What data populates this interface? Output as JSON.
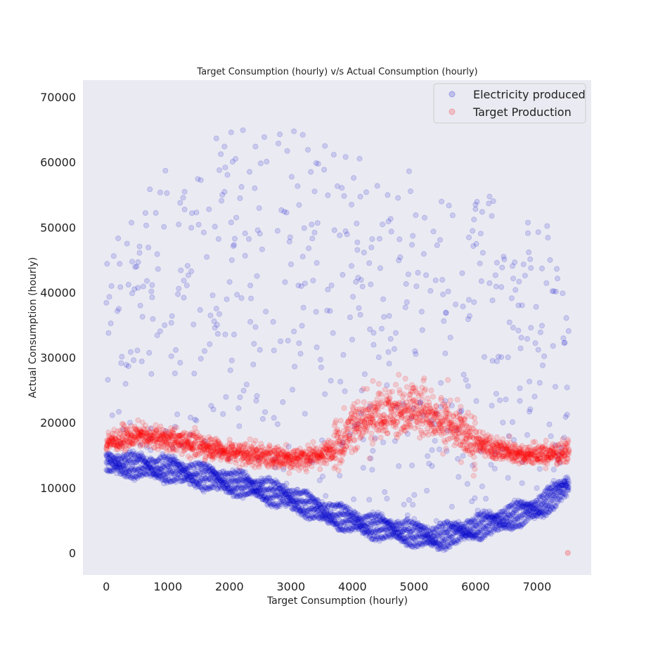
{
  "chart_data": {
    "type": "scatter",
    "title": "Target Consumption (hourly) v/s Actual Consumption (hourly)",
    "xlabel": "Target Consumption (hourly)",
    "ylabel": "Actual Consumption (hourly)",
    "xlim": [
      -380,
      7880
    ],
    "ylim": [
      -3400,
      72600
    ],
    "xticks": [
      "0",
      "1000",
      "2000",
      "3000",
      "4000",
      "5000",
      "6000",
      "7000"
    ],
    "yticks": [
      "0",
      "10000",
      "20000",
      "30000",
      "40000",
      "50000",
      "60000",
      "70000"
    ],
    "grid": false,
    "legend_position": "top-right",
    "series": [
      {
        "name": "Electricity produced",
        "color": "#0000cc",
        "marker": "circle",
        "alpha": 0.14,
        "baseline_profile": [
          [
            0,
            12500
          ],
          [
            500,
            12000
          ],
          [
            1000,
            11500
          ],
          [
            1500,
            10500
          ],
          [
            2000,
            9500
          ],
          [
            2500,
            8500
          ],
          [
            3000,
            7000
          ],
          [
            3500,
            5000
          ],
          [
            4000,
            3500
          ],
          [
            4500,
            2500
          ],
          [
            5000,
            1500
          ],
          [
            5300,
            1000
          ],
          [
            5600,
            1500
          ],
          [
            6000,
            2500
          ],
          [
            6500,
            4000
          ],
          [
            7000,
            5500
          ],
          [
            7500,
            9000
          ]
        ],
        "upper_envelope": [
          [
            0,
            45000
          ],
          [
            500,
            55000
          ],
          [
            1000,
            60000
          ],
          [
            1500,
            63000
          ],
          [
            2000,
            66000
          ],
          [
            2500,
            69000
          ],
          [
            3000,
            66000
          ],
          [
            3500,
            63000
          ],
          [
            4000,
            62000
          ],
          [
            4500,
            62000
          ],
          [
            5000,
            58000
          ],
          [
            5500,
            54000
          ],
          [
            6000,
            55000
          ],
          [
            6500,
            55000
          ],
          [
            7000,
            51000
          ],
          [
            7500,
            49000
          ]
        ]
      },
      {
        "name": "Target Production",
        "color": "#ff0000",
        "marker": "circle",
        "alpha": 0.14,
        "profile": [
          [
            0,
            17000
          ],
          [
            500,
            18000
          ],
          [
            1000,
            17500
          ],
          [
            1500,
            16500
          ],
          [
            2000,
            15500
          ],
          [
            2500,
            15000
          ],
          [
            3000,
            14500
          ],
          [
            3500,
            15000
          ],
          [
            3800,
            17000
          ],
          [
            4000,
            19500
          ],
          [
            4500,
            21000
          ],
          [
            5000,
            22000
          ],
          [
            5500,
            20000
          ],
          [
            5800,
            18500
          ],
          [
            6000,
            17000
          ],
          [
            6500,
            15500
          ],
          [
            7000,
            15000
          ],
          [
            7500,
            15500
          ]
        ],
        "outlier": [
          7500,
          0
        ]
      }
    ]
  }
}
